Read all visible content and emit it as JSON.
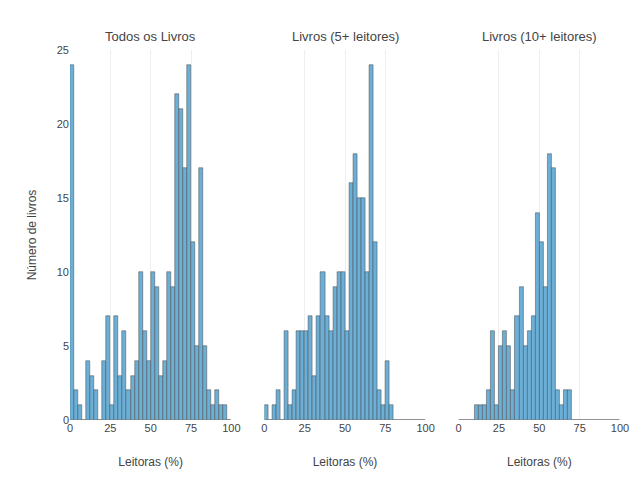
{
  "chart_data": [
    {
      "type": "histogram",
      "title": "Todos os Livros",
      "xlabel": "Leitoras (%)",
      "ylabel": "Número de livros",
      "bins": [
        0,
        2.5,
        5,
        7.5,
        10,
        12.5,
        15,
        17.5,
        20,
        22.5,
        25,
        27.5,
        30,
        32.5,
        35,
        37.5,
        40,
        42.5,
        45,
        47.5,
        50,
        52.5,
        55,
        57.5,
        60,
        62.5,
        65,
        67.5,
        70,
        72.5,
        75,
        77.5,
        80,
        82.5,
        85,
        87.5,
        90,
        92.5,
        95,
        97.5,
        100
      ],
      "values": [
        24,
        2,
        1,
        0,
        4,
        3,
        2,
        0,
        4,
        7,
        1,
        7,
        3,
        6,
        2,
        3,
        4,
        10,
        6,
        4,
        10,
        9,
        3,
        4,
        10,
        9,
        22,
        21,
        17,
        24,
        12,
        5,
        17,
        5,
        2,
        1,
        2,
        1,
        1,
        0
      ],
      "color": "#6baed6",
      "xlim": [
        0,
        100
      ],
      "ylim": [
        0,
        25
      ],
      "xticks": [
        0,
        25,
        50,
        75,
        100
      ],
      "yticks": [
        0,
        5,
        10,
        15,
        20,
        25
      ],
      "grid": "x"
    },
    {
      "type": "histogram",
      "title": "Livros (5+ leitores)",
      "xlabel": "Leitoras (%)",
      "bins": [
        0,
        2.5,
        5,
        7.5,
        10,
        12.5,
        15,
        17.5,
        20,
        22.5,
        25,
        27.5,
        30,
        32.5,
        35,
        37.5,
        40,
        42.5,
        45,
        47.5,
        50,
        52.5,
        55,
        57.5,
        60,
        62.5,
        65,
        67.5,
        70,
        72.5,
        75,
        77.5,
        80,
        82.5,
        85,
        87.5,
        90,
        92.5,
        95,
        97.5,
        100
      ],
      "values": [
        1,
        0,
        1,
        2,
        0,
        6,
        1,
        2,
        6,
        6,
        6,
        7,
        3,
        7,
        10,
        7,
        6,
        9,
        10,
        10,
        6,
        16,
        18,
        15,
        15,
        10,
        24,
        12,
        2,
        1,
        4,
        1,
        0,
        0,
        0,
        0,
        0,
        0,
        0,
        0
      ],
      "color": "#6baed6",
      "xlim": [
        0,
        100
      ],
      "ylim": [
        0,
        25
      ],
      "xticks": [
        0,
        25,
        50,
        75,
        100
      ],
      "yticks": [
        0,
        5,
        10,
        15,
        20,
        25
      ],
      "grid": "x",
      "tick_labels": "x"
    },
    {
      "type": "histogram",
      "title": "Livros (10+ leitores)",
      "xlabel": "Leitoras (%)",
      "bins": [
        0,
        2.5,
        5,
        7.5,
        10,
        12.5,
        15,
        17.5,
        20,
        22.5,
        25,
        27.5,
        30,
        32.5,
        35,
        37.5,
        40,
        42.5,
        45,
        47.5,
        50,
        52.5,
        55,
        57.5,
        60,
        62.5,
        65,
        67.5,
        70,
        72.5,
        75,
        77.5,
        80,
        82.5,
        85,
        87.5,
        90,
        92.5,
        95,
        97.5,
        100
      ],
      "values": [
        0,
        0,
        0,
        0,
        1,
        1,
        1,
        2,
        6,
        1,
        5,
        6,
        5,
        2,
        7,
        9,
        5,
        6,
        7,
        14,
        12,
        9,
        18,
        17,
        2,
        1,
        2,
        2,
        0,
        0,
        0,
        0,
        0,
        0,
        0,
        0,
        0,
        0,
        0,
        0
      ],
      "color": "#6baed6",
      "xlim": [
        0,
        100
      ],
      "ylim": [
        0,
        25
      ],
      "xticks": [
        0,
        25,
        50,
        75,
        100
      ],
      "yticks": [
        0,
        5,
        10,
        15,
        20,
        25
      ],
      "grid": "x",
      "tick_labels": "x"
    }
  ]
}
